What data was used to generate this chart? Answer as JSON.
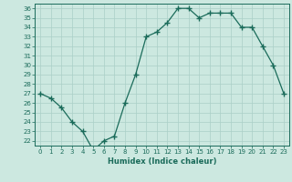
{
  "x": [
    0,
    1,
    2,
    3,
    4,
    5,
    6,
    7,
    8,
    9,
    10,
    11,
    12,
    13,
    14,
    15,
    16,
    17,
    18,
    19,
    20,
    21,
    22,
    23
  ],
  "y": [
    27,
    26.5,
    25.5,
    24,
    23,
    21,
    22,
    22.5,
    26,
    29,
    33,
    33.5,
    34.5,
    36,
    36,
    35,
    35.5,
    35.5,
    35.5,
    34,
    34,
    32,
    30,
    27
  ],
  "xlabel": "Humidex (Indice chaleur)",
  "xlim": [
    -0.5,
    23.5
  ],
  "ylim": [
    21.5,
    36.5
  ],
  "yticks": [
    22,
    23,
    24,
    25,
    26,
    27,
    28,
    29,
    30,
    31,
    32,
    33,
    34,
    35,
    36
  ],
  "xticks": [
    0,
    1,
    2,
    3,
    4,
    5,
    6,
    7,
    8,
    9,
    10,
    11,
    12,
    13,
    14,
    15,
    16,
    17,
    18,
    19,
    20,
    21,
    22,
    23
  ],
  "line_color": "#1a6b5a",
  "bg_color": "#cce8e0",
  "grid_color": "#aacfc7",
  "marker": "+",
  "marker_size": 4,
  "linewidth": 0.9
}
